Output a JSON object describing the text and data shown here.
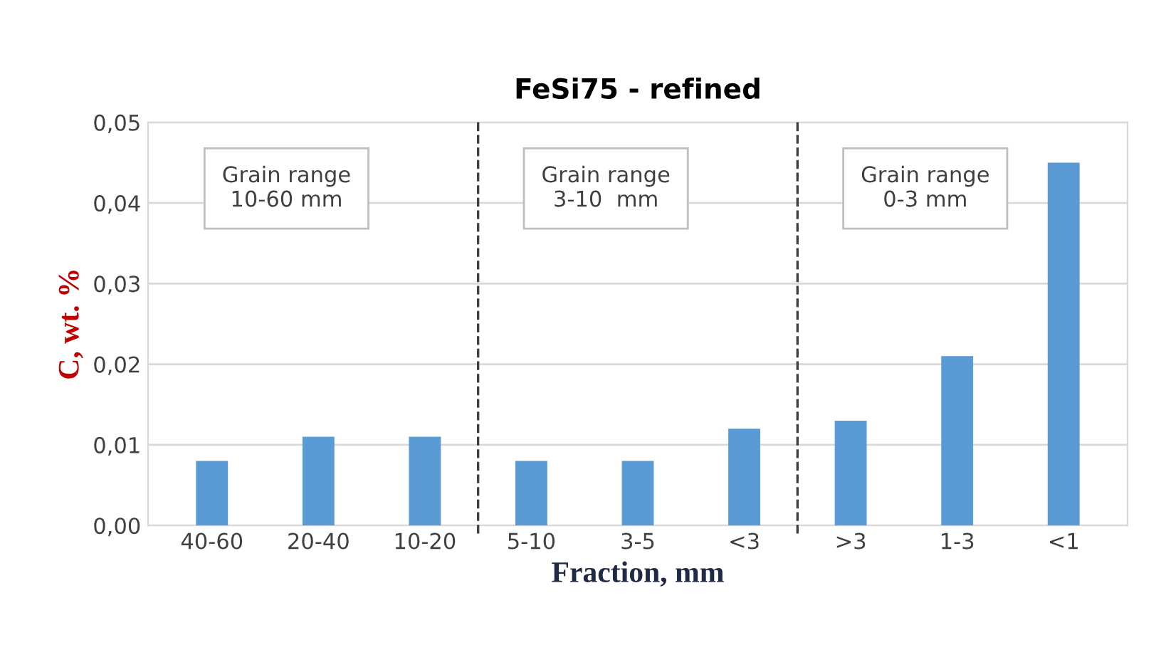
{
  "chart_data": {
    "type": "bar",
    "title": "FeSi75 - refined",
    "xlabel": "Fraction, mm",
    "ylabel": "C, wt. %",
    "categories": [
      "40-60",
      "20-40",
      "10-20",
      "5-10",
      "3-5",
      "<3",
      ">3",
      "1-3",
      "<1"
    ],
    "values": [
      0.008,
      0.011,
      0.011,
      0.008,
      0.008,
      0.012,
      0.013,
      0.021,
      0.045
    ],
    "color": "#5b9bd5",
    "ylim": [
      0,
      0.05
    ],
    "yticks": [
      {
        "value": 0,
        "label": "0,00"
      },
      {
        "value": 0.01,
        "label": "0,01"
      },
      {
        "value": 0.02,
        "label": "0,02"
      },
      {
        "value": 0.03,
        "label": "0,03"
      },
      {
        "value": 0.04,
        "label": "0,04"
      },
      {
        "value": 0.05,
        "label": "0,05"
      }
    ],
    "grid": "y",
    "annotations": [
      "Grain range\n10-60 mm",
      "Grain range\n3-10  mm",
      "Grain range\n0-3 mm"
    ]
  }
}
